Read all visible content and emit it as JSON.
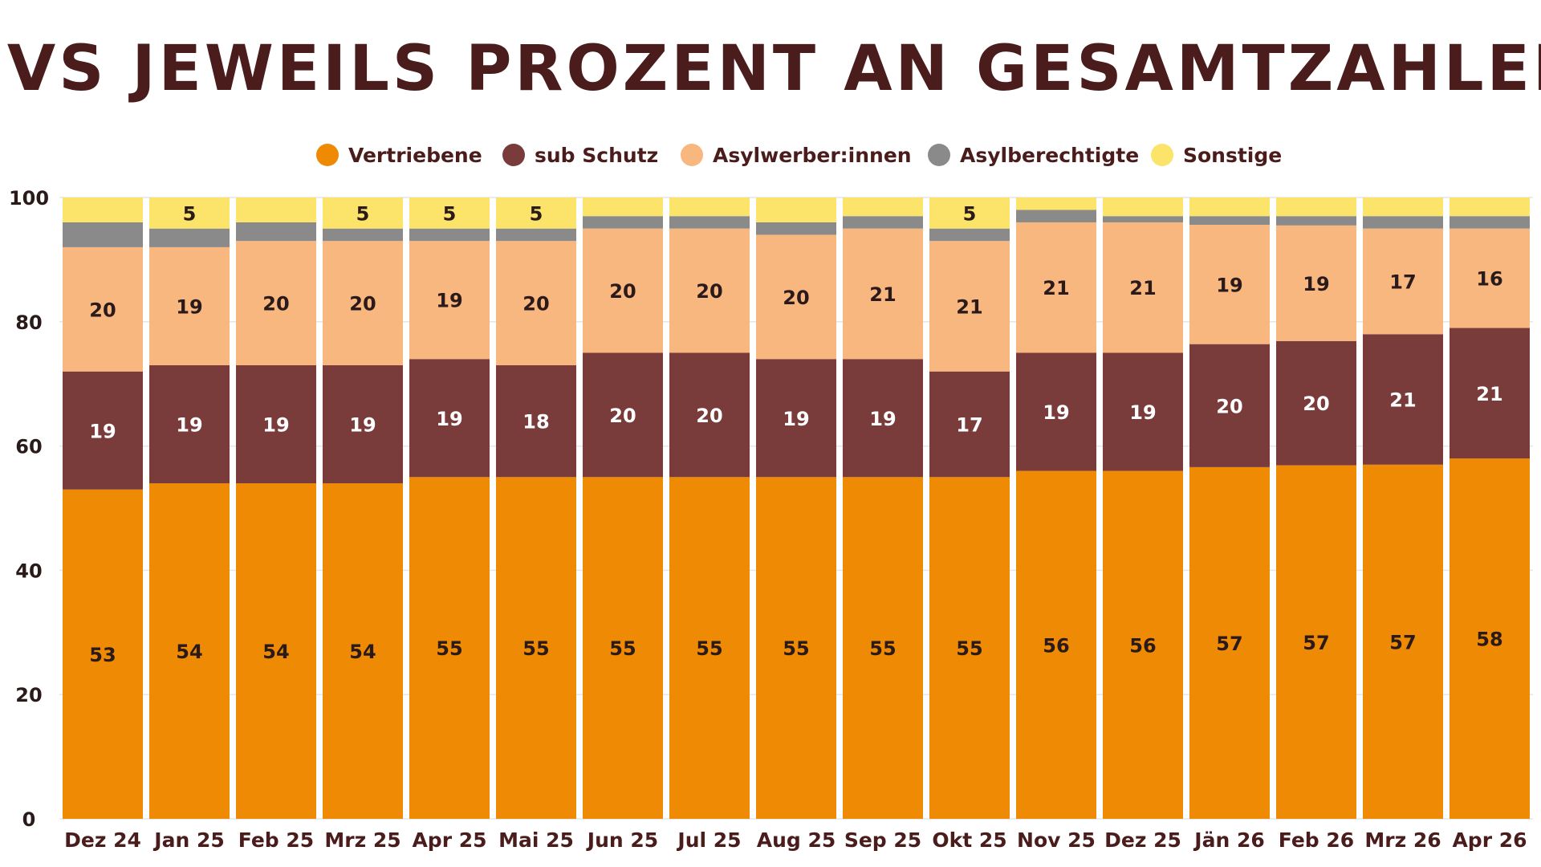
{
  "chart_data": {
    "type": "bar",
    "stacked": true,
    "title": "GVS JEWEILS PROZENT AN GESAMTZAHLEN",
    "xlabel": "",
    "ylabel": "",
    "ylim": [
      0,
      100
    ],
    "yticks": [
      0,
      20,
      40,
      60,
      80,
      100
    ],
    "grid": true,
    "legend_position": "top-center",
    "categories": [
      "Dez 24",
      "Jan 25",
      "Feb 25",
      "Mrz 25",
      "Apr 25",
      "Mai 25",
      "Jun 25",
      "Jul 25",
      "Aug 25",
      "Sep 25",
      "Okt 25",
      "Nov 25",
      "Dez 25",
      "Jän 26",
      "Feb 26",
      "Mrz 26",
      "Apr 26"
    ],
    "series": [
      {
        "name": "Vertriebene",
        "color": "#ee8a04",
        "label_color": "#2a1a1a",
        "values": [
          53,
          54,
          54,
          54,
          55,
          55,
          55,
          55,
          55,
          55,
          55,
          56,
          56,
          56.6,
          56.9,
          57,
          58
        ],
        "labels": [
          "53",
          "54",
          "54",
          "54",
          "55",
          "55",
          "55",
          "55",
          "55",
          "55",
          "55",
          "56",
          "56",
          "57",
          "57",
          "57",
          "58"
        ]
      },
      {
        "name": "sub Schutz",
        "color": "#7a3b3b",
        "label_color": "#ffffff",
        "values": [
          19,
          19,
          19,
          19,
          19,
          18,
          20,
          20,
          19,
          19,
          17,
          19,
          19,
          19.8,
          20,
          21,
          21
        ],
        "labels": [
          "19",
          "19",
          "19",
          "19",
          "19",
          "18",
          "20",
          "20",
          "19",
          "19",
          "17",
          "19",
          "19",
          "20",
          "20",
          "21",
          "21"
        ]
      },
      {
        "name": "Asylwerber:innen",
        "color": "#f8b77e",
        "label_color": "#2a1a1a",
        "values": [
          20,
          19,
          20,
          20,
          19,
          20,
          20,
          20,
          20,
          21,
          21,
          21,
          21,
          19.2,
          18.6,
          17,
          16
        ],
        "labels": [
          "20",
          "19",
          "20",
          "20",
          "19",
          "20",
          "20",
          "20",
          "20",
          "21",
          "21",
          "21",
          "21",
          "19",
          "19",
          "17",
          "16"
        ]
      },
      {
        "name": "Asylberechtigte",
        "color": "#8a8a8a",
        "label_color": "#2a1a1a",
        "values": [
          4,
          3,
          3,
          2,
          2,
          2,
          2,
          2,
          2,
          2,
          2,
          2,
          1,
          1.4,
          1.5,
          2,
          2
        ],
        "labels": [
          "",
          "",
          "",
          "",
          "",
          "",
          "",
          "",
          "",
          "",
          "",
          "",
          "",
          "",
          "",
          "",
          ""
        ]
      },
      {
        "name": "Sonstige",
        "color": "#fce36a",
        "label_color": "#2a1a1a",
        "values": [
          4,
          5,
          4,
          5,
          5,
          5,
          3,
          3,
          4,
          3,
          5,
          2,
          3,
          3,
          3,
          3,
          3
        ],
        "labels": [
          "",
          "5",
          "",
          "5",
          "5",
          "5",
          "",
          "",
          "",
          "",
          "5",
          "",
          "",
          "",
          "",
          "",
          ""
        ]
      }
    ]
  }
}
